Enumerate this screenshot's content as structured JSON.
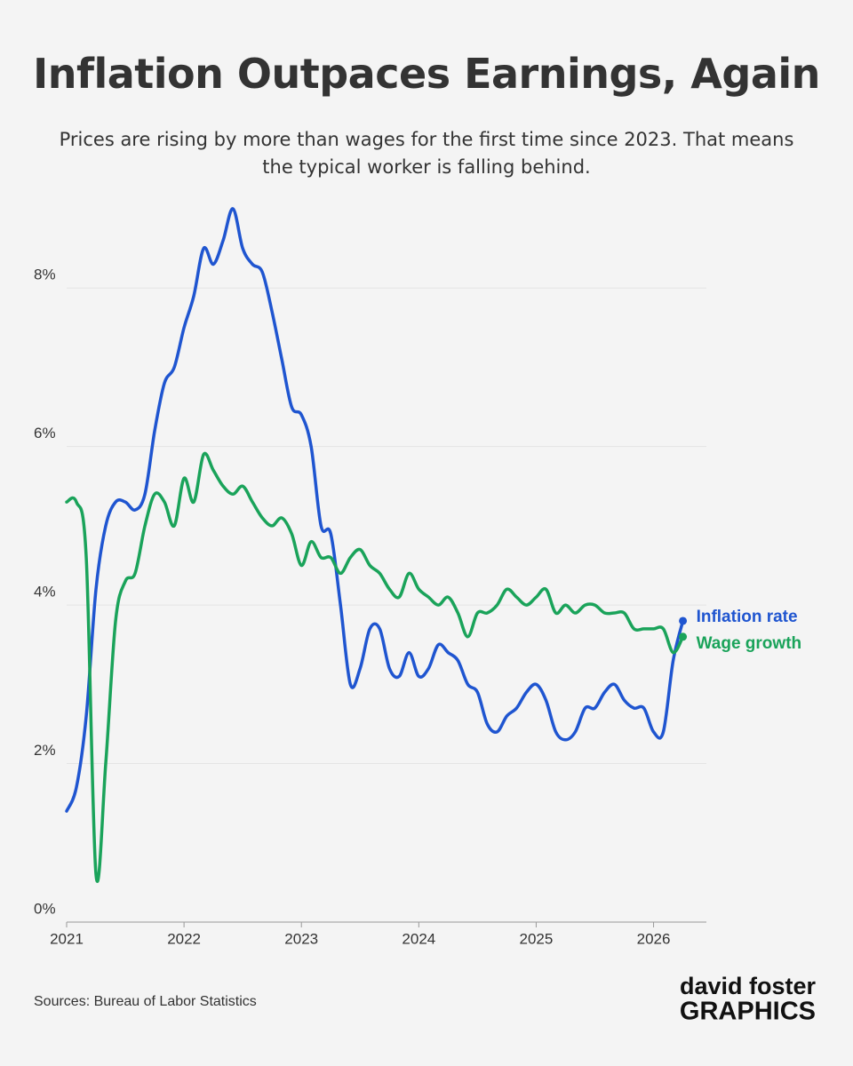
{
  "chart_data": {
    "type": "line",
    "title": "Inflation Outpaces Earnings, Again",
    "subtitle": "Prices are rising by more than wages for the first time since 2023. That means the typical worker is falling behind.",
    "source": "Sources: Bureau of Labor Statistics",
    "logo": {
      "line1": "david foster",
      "line2": "GRAPHICS"
    },
    "x": [
      2021,
      2021.083,
      2021.167,
      2021.25,
      2021.333,
      2021.417,
      2021.5,
      2021.583,
      2021.667,
      2021.75,
      2021.833,
      2021.917,
      2022,
      2022.083,
      2022.167,
      2022.25,
      2022.333,
      2022.417,
      2022.5,
      2022.583,
      2022.667,
      2022.75,
      2022.833,
      2022.917,
      2023,
      2023.083,
      2023.167,
      2023.25,
      2023.333,
      2023.417,
      2023.5,
      2023.583,
      2023.667,
      2023.75,
      2023.833,
      2023.917,
      2024,
      2024.083,
      2024.167,
      2024.25,
      2024.333,
      2024.417,
      2024.5,
      2024.583,
      2024.667,
      2024.75,
      2024.833,
      2024.917,
      2025,
      2025.083,
      2025.167,
      2025.25,
      2025.333,
      2025.417,
      2025.5,
      2025.583,
      2025.667,
      2025.75,
      2025.833,
      2025.917,
      2026,
      2026.083,
      2026.167,
      2026.25
    ],
    "series": [
      {
        "name": "Inflation rate",
        "color": "#1f55d0",
        "values": [
          1.4,
          1.7,
          2.6,
          4.2,
          5.0,
          5.3,
          5.3,
          5.2,
          5.4,
          6.2,
          6.8,
          7.0,
          7.5,
          7.9,
          8.5,
          8.3,
          8.6,
          9.0,
          8.5,
          8.3,
          8.2,
          7.7,
          7.1,
          6.5,
          6.4,
          6.0,
          5.0,
          4.9,
          4.0,
          3.0,
          3.2,
          3.7,
          3.7,
          3.2,
          3.1,
          3.4,
          3.1,
          3.2,
          3.5,
          3.4,
          3.3,
          3.0,
          2.9,
          2.5,
          2.4,
          2.6,
          2.7,
          2.9,
          3.0,
          2.8,
          2.4,
          2.3,
          2.4,
          2.7,
          2.7,
          2.9,
          3.0,
          2.8,
          2.7,
          2.7,
          2.4,
          2.4,
          3.3,
          3.8
        ]
      },
      {
        "name": "Wage growth",
        "color": "#1aa35a",
        "values": [
          5.3,
          5.3,
          4.6,
          0.6,
          2.0,
          3.8,
          4.3,
          4.4,
          5.0,
          5.4,
          5.3,
          5.0,
          5.6,
          5.3,
          5.9,
          5.7,
          5.5,
          5.4,
          5.5,
          5.3,
          5.1,
          5.0,
          5.1,
          4.9,
          4.5,
          4.8,
          4.6,
          4.6,
          4.4,
          4.6,
          4.7,
          4.5,
          4.4,
          4.2,
          4.1,
          4.4,
          4.2,
          4.1,
          4.0,
          4.1,
          3.9,
          3.6,
          3.9,
          3.9,
          4.0,
          4.2,
          4.1,
          4.0,
          4.1,
          4.2,
          3.9,
          4.0,
          3.9,
          4.0,
          4.0,
          3.9,
          3.9,
          3.9,
          3.7,
          3.7,
          3.7,
          3.7,
          3.4,
          3.6
        ]
      }
    ],
    "xlim": [
      2021,
      2026.45
    ],
    "xticks": [
      2021,
      2022,
      2023,
      2024,
      2025,
      2026
    ],
    "ylim": [
      0,
      9
    ],
    "yticks": [
      {
        "value": 0,
        "label": "0%"
      },
      {
        "value": 2,
        "label": "2%"
      },
      {
        "value": 4,
        "label": "4%"
      },
      {
        "value": 6,
        "label": "6%"
      },
      {
        "value": 8,
        "label": "8%"
      }
    ],
    "grid": true,
    "smooth": true
  }
}
